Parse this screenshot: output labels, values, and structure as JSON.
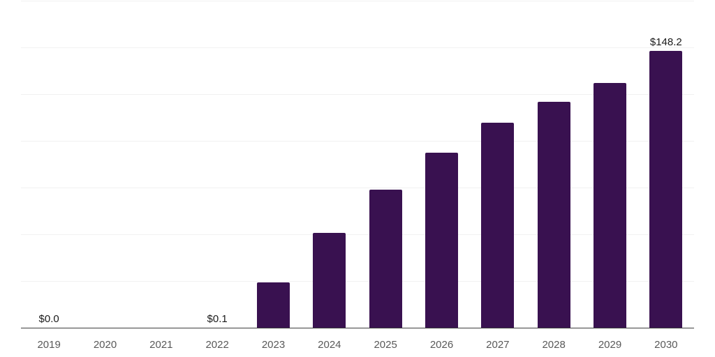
{
  "chart_data": {
    "type": "bar",
    "title": "",
    "xlabel": "",
    "ylabel": "",
    "categories": [
      "2019",
      "2020",
      "2021",
      "2022",
      "2023",
      "2024",
      "2025",
      "2026",
      "2027",
      "2028",
      "2029",
      "2030"
    ],
    "values": [
      0.0,
      0.0,
      0.0,
      0.1,
      24.3,
      50.7,
      74.0,
      93.7,
      109.7,
      121.0,
      131.0,
      148.2
    ],
    "data_labels": [
      "$0.0",
      "",
      "",
      "$0.1",
      "",
      "",
      "",
      "",
      "",
      "",
      "",
      "$148.2"
    ],
    "ylim": [
      0,
      175
    ],
    "grid_step": 25,
    "grid": "horizontal-only",
    "y_tick_labels_visible": false,
    "legend": "none",
    "colors": {
      "bar": "#391150",
      "gridline": "#f1f1f1",
      "axis_line": "#3d3d3d",
      "value_label": "#1a1a1a",
      "tick_label": "#595959",
      "background": "#ffffff"
    }
  }
}
